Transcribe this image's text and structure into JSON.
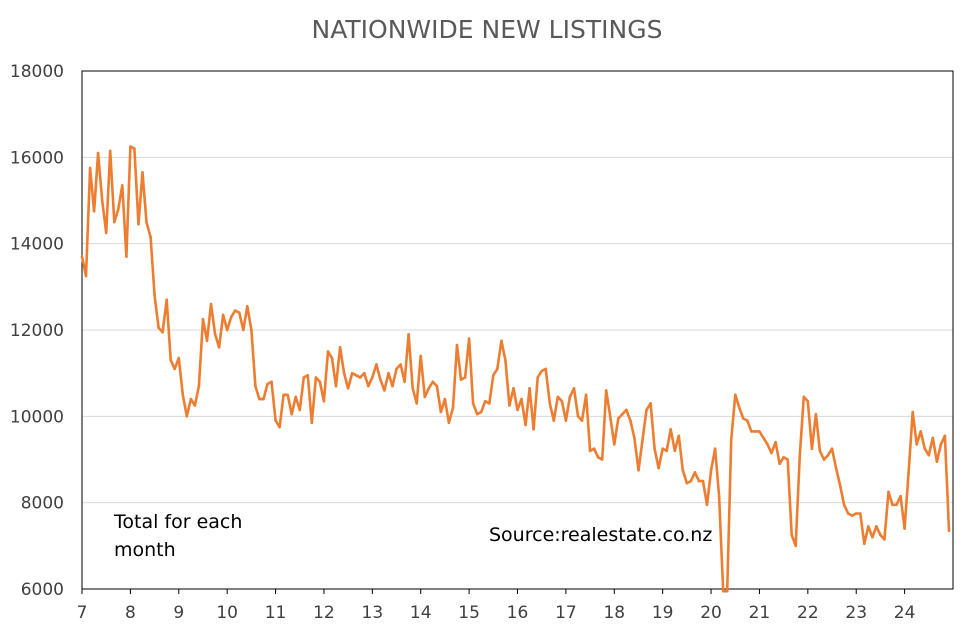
{
  "chart_data": {
    "type": "line",
    "title": "NATIONWIDE NEW LISTINGS",
    "xlabel": "",
    "ylabel": "",
    "ylim": [
      6000,
      18000
    ],
    "xlim": [
      7,
      25
    ],
    "yticks": [
      6000,
      8000,
      10000,
      12000,
      14000,
      16000,
      18000
    ],
    "xticks": [
      7,
      8,
      9,
      10,
      11,
      12,
      13,
      14,
      15,
      16,
      17,
      18,
      19,
      20,
      21,
      22,
      23,
      24
    ],
    "grid": true,
    "legend": "none",
    "annotations": [
      "Total for each",
      "month",
      "Source:realestate.co.nz"
    ],
    "series": [
      {
        "color": "#ED7D31",
        "x": [
          7.0,
          7.0833,
          7.1667,
          7.25,
          7.3333,
          7.4167,
          7.5,
          7.5833,
          7.6667,
          7.75,
          7.8333,
          7.9167,
          8.0,
          8.0833,
          8.1667,
          8.25,
          8.3333,
          8.4167,
          8.5,
          8.5833,
          8.6667,
          8.75,
          8.8333,
          8.9167,
          9.0,
          9.0833,
          9.1667,
          9.25,
          9.3333,
          9.4167,
          9.5,
          9.5833,
          9.6667,
          9.75,
          9.8333,
          9.9167,
          10.0,
          10.0833,
          10.1667,
          10.25,
          10.3333,
          10.4167,
          10.5,
          10.5833,
          10.6667,
          10.75,
          10.8333,
          10.9167,
          11.0,
          11.0833,
          11.1667,
          11.25,
          11.3333,
          11.4167,
          11.5,
          11.5833,
          11.6667,
          11.75,
          11.8333,
          11.9167,
          12.0,
          12.0833,
          12.1667,
          12.25,
          12.3333,
          12.4167,
          12.5,
          12.5833,
          12.6667,
          12.75,
          12.8333,
          12.9167,
          13.0,
          13.0833,
          13.1667,
          13.25,
          13.3333,
          13.4167,
          13.5,
          13.5833,
          13.6667,
          13.75,
          13.8333,
          13.9167,
          14.0,
          14.0833,
          14.1667,
          14.25,
          14.3333,
          14.4167,
          14.5,
          14.5833,
          14.6667,
          14.75,
          14.8333,
          14.9167,
          15.0,
          15.0833,
          15.1667,
          15.25,
          15.3333,
          15.4167,
          15.5,
          15.5833,
          15.6667,
          15.75,
          15.8333,
          15.9167,
          16.0,
          16.0833,
          16.1667,
          16.25,
          16.3333,
          16.4167,
          16.5,
          16.5833,
          16.6667,
          16.75,
          16.8333,
          16.9167,
          17.0,
          17.0833,
          17.1667,
          17.25,
          17.3333,
          17.4167,
          17.5,
          17.5833,
          17.6667,
          17.75,
          17.8333,
          17.9167,
          18.0,
          18.0833,
          18.1667,
          18.25,
          18.3333,
          18.4167,
          18.5,
          18.5833,
          18.6667,
          18.75,
          18.8333,
          18.9167,
          19.0,
          19.0833,
          19.1667,
          19.25,
          19.3333,
          19.4167,
          19.5,
          19.5833,
          19.6667,
          19.75,
          19.8333,
          19.9167,
          20.0,
          20.0833,
          20.1667,
          20.25,
          20.3333,
          20.4167,
          20.5,
          20.5833,
          20.6667,
          20.75,
          20.8333,
          20.9167,
          21.0,
          21.0833,
          21.1667,
          21.25,
          21.3333,
          21.4167,
          21.5,
          21.5833,
          21.6667,
          21.75,
          21.8333,
          21.9167,
          22.0,
          22.0833,
          22.1667,
          22.25,
          22.3333,
          22.4167,
          22.5,
          22.5833,
          22.6667,
          22.75,
          22.8333,
          22.9167,
          23.0,
          23.0833,
          23.1667,
          23.25,
          23.3333,
          23.4167,
          23.5,
          23.5833,
          23.6667,
          23.75,
          23.8333,
          23.9167,
          24.0,
          24.0833,
          24.1667,
          24.25,
          24.3333,
          24.4167,
          24.5,
          24.5833,
          24.6667,
          24.75,
          24.8333,
          24.9167
        ],
        "values": [
          13700,
          13250,
          15750,
          14750,
          16100,
          15000,
          14250,
          16150,
          14500,
          14800,
          15350,
          13700,
          16250,
          16200,
          14450,
          15650,
          14500,
          14150,
          12800,
          12050,
          11950,
          12700,
          11300,
          11100,
          11350,
          10500,
          10000,
          10400,
          10250,
          10700,
          12250,
          11750,
          12600,
          11900,
          11600,
          12350,
          12000,
          12300,
          12450,
          12400,
          12000,
          12550,
          12000,
          10700,
          10400,
          10400,
          10750,
          10800,
          9900,
          9750,
          10500,
          10500,
          10050,
          10450,
          10150,
          10900,
          10950,
          9850,
          10900,
          10800,
          10350,
          11500,
          11350,
          10700,
          11600,
          11000,
          10650,
          11000,
          10950,
          10900,
          11000,
          10700,
          10900,
          11200,
          10850,
          10600,
          11000,
          10700,
          11100,
          11200,
          10800,
          11900,
          10650,
          10300,
          11400,
          10450,
          10650,
          10800,
          10700,
          10100,
          10400,
          9850,
          10200,
          11650,
          10850,
          10900,
          11800,
          10300,
          10050,
          10100,
          10350,
          10300,
          10950,
          11100,
          11750,
          11300,
          10250,
          10650,
          10150,
          10400,
          9800,
          10650,
          9700,
          10900,
          11050,
          11100,
          10300,
          9900,
          10450,
          10350,
          9900,
          10450,
          10650,
          10000,
          9900,
          10500,
          9200,
          9250,
          9050,
          9000,
          10600,
          10000,
          9350,
          9950,
          10050,
          10150,
          9900,
          9500,
          8750,
          9450,
          10150,
          10300,
          9250,
          8800,
          9250,
          9200,
          9700,
          9200,
          9550,
          8750,
          8450,
          8500,
          8700,
          8500,
          8500,
          7950,
          8750,
          9250,
          8150,
          5950,
          5850,
          9450,
          10500,
          10200,
          9950,
          9900,
          9650,
          9650,
          9650,
          9500,
          9350,
          9150,
          9400,
          8900,
          9050,
          9000,
          7250,
          7000,
          9100,
          10450,
          10350,
          9250,
          10050,
          9200,
          9000,
          9100,
          9250,
          8800,
          8400,
          7950,
          7750,
          7700,
          7750,
          7750,
          7050,
          7450,
          7200,
          7450,
          7250,
          7150,
          8250,
          7950,
          7950,
          8150,
          7400,
          8700,
          10100,
          9350,
          9650,
          9250,
          9100,
          9500,
          8950,
          9350,
          9550,
          7350
        ]
      }
    ]
  }
}
